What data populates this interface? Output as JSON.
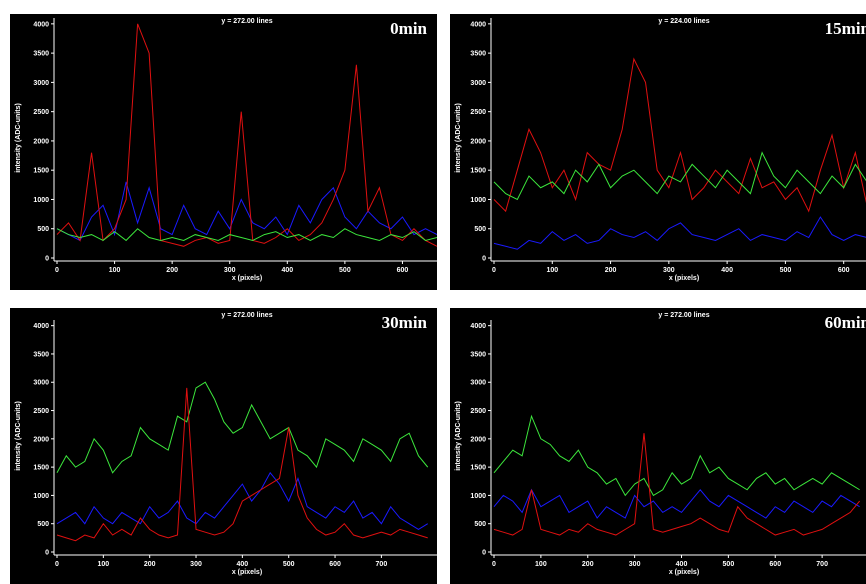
{
  "chart_data": [
    {
      "type": "line",
      "title": "0min",
      "subtitle": "y = 272.00  lines",
      "x_label": "x (pixels)",
      "y_label": "intensity (ADC-units)",
      "xlim": [
        0,
        660
      ],
      "xticks": [
        0,
        100,
        200,
        300,
        400,
        500,
        600
      ],
      "ylim": [
        0,
        4100
      ],
      "yticks": [
        0,
        500,
        1000,
        1500,
        2000,
        2500,
        3000,
        3500,
        4000
      ],
      "x": [
        0,
        20,
        40,
        60,
        80,
        100,
        120,
        140,
        160,
        180,
        200,
        220,
        240,
        260,
        280,
        300,
        320,
        340,
        360,
        380,
        400,
        420,
        440,
        460,
        480,
        500,
        520,
        540,
        560,
        580,
        600,
        620,
        640,
        660
      ],
      "series": [
        {
          "color": "#1a1aff",
          "values": [
            500,
            400,
            300,
            700,
            900,
            400,
            1300,
            600,
            1200,
            500,
            400,
            900,
            500,
            400,
            800,
            500,
            1000,
            600,
            500,
            700,
            400,
            900,
            600,
            1000,
            1200,
            700,
            500,
            800,
            600,
            500,
            700,
            400,
            500,
            400
          ]
        },
        {
          "color": "#e01010",
          "values": [
            400,
            600,
            300,
            1800,
            300,
            500,
            1000,
            4000,
            3500,
            300,
            250,
            200,
            300,
            350,
            250,
            300,
            2500,
            300,
            250,
            350,
            500,
            300,
            400,
            600,
            1000,
            1500,
            3300,
            800,
            1200,
            400,
            300,
            500,
            300,
            200
          ]
        },
        {
          "color": "#3ce63c",
          "values": [
            500,
            400,
            350,
            400,
            300,
            450,
            300,
            500,
            350,
            300,
            350,
            300,
            400,
            350,
            300,
            400,
            350,
            300,
            400,
            450,
            350,
            400,
            300,
            400,
            350,
            500,
            400,
            350,
            300,
            400,
            350,
            450,
            300,
            350
          ]
        }
      ]
    },
    {
      "type": "line",
      "title": "15min",
      "subtitle": "y = 224.00  lines",
      "x_label": "x (pixels)",
      "y_label": "intensity (ADC-units)",
      "xlim": [
        0,
        640
      ],
      "xticks": [
        0,
        100,
        200,
        300,
        400,
        500,
        600
      ],
      "ylim": [
        0,
        4100
      ],
      "yticks": [
        0,
        500,
        1000,
        1500,
        2000,
        2500,
        3000,
        3500,
        4000
      ],
      "x": [
        0,
        20,
        40,
        60,
        80,
        100,
        120,
        140,
        160,
        180,
        200,
        220,
        240,
        260,
        280,
        300,
        320,
        340,
        360,
        380,
        400,
        420,
        440,
        460,
        480,
        500,
        520,
        540,
        560,
        580,
        600,
        620,
        640
      ],
      "series": [
        {
          "color": "#1a1aff",
          "values": [
            250,
            200,
            150,
            300,
            250,
            450,
            300,
            400,
            250,
            300,
            500,
            400,
            350,
            450,
            300,
            500,
            600,
            400,
            350,
            300,
            400,
            500,
            300,
            400,
            350,
            300,
            450,
            350,
            700,
            400,
            300,
            400,
            350
          ]
        },
        {
          "color": "#e01010",
          "values": [
            1000,
            800,
            1500,
            2200,
            1800,
            1200,
            1500,
            1000,
            1800,
            1600,
            1500,
            2200,
            3400,
            3000,
            1500,
            1200,
            1800,
            1000,
            1200,
            1500,
            1300,
            1100,
            1700,
            1200,
            1300,
            1000,
            1200,
            800,
            1500,
            2100,
            1200,
            1800,
            900
          ]
        },
        {
          "color": "#3ce63c",
          "values": [
            1300,
            1100,
            1000,
            1400,
            1200,
            1300,
            1100,
            1500,
            1300,
            1600,
            1200,
            1400,
            1500,
            1300,
            1100,
            1400,
            1300,
            1600,
            1400,
            1200,
            1500,
            1300,
            1100,
            1800,
            1400,
            1200,
            1500,
            1300,
            1100,
            1400,
            1200,
            1600,
            1300
          ]
        }
      ]
    },
    {
      "type": "line",
      "title": "30min",
      "subtitle": "y = 272.00  lines",
      "x_label": "x (pixels)",
      "y_label": "intensity (ADC-units)",
      "xlim": [
        0,
        820
      ],
      "xticks": [
        0,
        100,
        200,
        300,
        400,
        500,
        600,
        700
      ],
      "ylim": [
        0,
        4100
      ],
      "yticks": [
        0,
        500,
        1000,
        1500,
        2000,
        2500,
        3000,
        3500,
        4000
      ],
      "x": [
        0,
        20,
        40,
        60,
        80,
        100,
        120,
        140,
        160,
        180,
        200,
        220,
        240,
        260,
        280,
        300,
        320,
        340,
        360,
        380,
        400,
        420,
        440,
        460,
        480,
        500,
        520,
        540,
        560,
        580,
        600,
        620,
        640,
        660,
        680,
        700,
        720,
        740,
        760,
        780,
        800
      ],
      "series": [
        {
          "color": "#3ce63c",
          "values": [
            1400,
            1700,
            1500,
            1600,
            2000,
            1800,
            1400,
            1600,
            1700,
            2200,
            2000,
            1900,
            1800,
            2400,
            2300,
            2900,
            3000,
            2700,
            2300,
            2100,
            2200,
            2600,
            2300,
            2000,
            2100,
            2200,
            1800,
            1700,
            1500,
            2000,
            1900,
            1800,
            1600,
            2000,
            1900,
            1800,
            1600,
            2000,
            2100,
            1700,
            1500
          ]
        },
        {
          "color": "#1a1aff",
          "values": [
            500,
            600,
            700,
            500,
            800,
            600,
            500,
            700,
            600,
            500,
            800,
            600,
            700,
            900,
            600,
            500,
            700,
            600,
            800,
            1000,
            1200,
            900,
            1100,
            1400,
            1200,
            900,
            1300,
            800,
            700,
            600,
            800,
            700,
            900,
            600,
            700,
            500,
            800,
            600,
            500,
            400,
            500
          ]
        },
        {
          "color": "#e01010",
          "values": [
            300,
            250,
            200,
            300,
            250,
            500,
            300,
            400,
            300,
            600,
            400,
            300,
            250,
            300,
            2900,
            400,
            350,
            300,
            350,
            500,
            900,
            1000,
            1100,
            1200,
            1300,
            2200,
            1000,
            600,
            400,
            300,
            350,
            500,
            300,
            250,
            300,
            350,
            300,
            400,
            350,
            300,
            250
          ]
        }
      ]
    },
    {
      "type": "line",
      "title": "60min",
      "subtitle": "y = 272.00  lines",
      "x_label": "x (pixels)",
      "y_label": "intensity (ADC-units)",
      "xlim": [
        0,
        800
      ],
      "xticks": [
        0,
        100,
        200,
        300,
        400,
        500,
        600,
        700
      ],
      "ylim": [
        0,
        4100
      ],
      "yticks": [
        0,
        500,
        1000,
        1500,
        2000,
        2500,
        3000,
        3500,
        4000
      ],
      "x": [
        0,
        20,
        40,
        60,
        80,
        100,
        120,
        140,
        160,
        180,
        200,
        220,
        240,
        260,
        280,
        300,
        320,
        340,
        360,
        380,
        400,
        420,
        440,
        460,
        480,
        500,
        520,
        540,
        560,
        580,
        600,
        620,
        640,
        660,
        680,
        700,
        720,
        740,
        760,
        780
      ],
      "series": [
        {
          "color": "#3ce63c",
          "values": [
            1400,
            1600,
            1800,
            1700,
            2400,
            2000,
            1900,
            1700,
            1600,
            1800,
            1500,
            1400,
            1200,
            1300,
            1000,
            1200,
            1300,
            1000,
            1100,
            1400,
            1200,
            1300,
            1700,
            1400,
            1500,
            1300,
            1200,
            1100,
            1300,
            1400,
            1200,
            1300,
            1100,
            1200,
            1300,
            1200,
            1400,
            1300,
            1200,
            1100
          ]
        },
        {
          "color": "#1a1aff",
          "values": [
            800,
            1000,
            900,
            700,
            1100,
            800,
            900,
            1000,
            700,
            800,
            900,
            600,
            800,
            700,
            600,
            1000,
            800,
            900,
            700,
            800,
            700,
            900,
            1100,
            900,
            800,
            1000,
            900,
            800,
            700,
            600,
            800,
            700,
            900,
            800,
            700,
            900,
            800,
            1000,
            900,
            800
          ]
        },
        {
          "color": "#e01010",
          "values": [
            400,
            350,
            300,
            400,
            1100,
            400,
            350,
            300,
            400,
            350,
            500,
            400,
            350,
            300,
            400,
            500,
            2100,
            400,
            350,
            400,
            450,
            500,
            600,
            500,
            400,
            350,
            800,
            600,
            500,
            400,
            300,
            350,
            400,
            300,
            350,
            400,
            500,
            600,
            700,
            900
          ]
        }
      ]
    }
  ]
}
